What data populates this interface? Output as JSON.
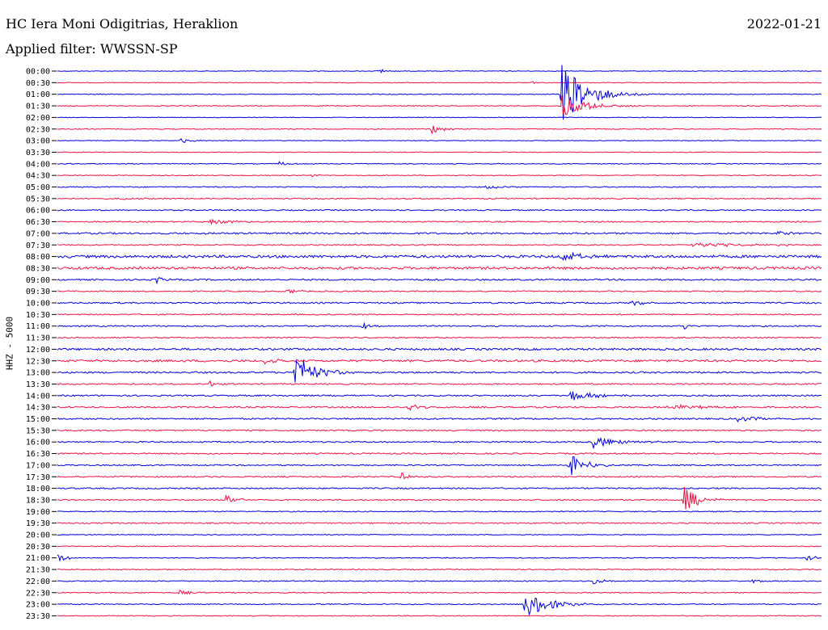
{
  "header": {
    "station": "HC Iera Moni Odigitrias, Heraklion",
    "date": "2022-01-21",
    "filter": "Applied filter: WWSSN-SP"
  },
  "chart_data": {
    "type": "line",
    "ylabel": "HHZ - 5000",
    "colors": [
      "#0000dd",
      "#ee1144"
    ],
    "rows": [
      "00:00",
      "00:30",
      "01:00",
      "01:30",
      "02:00",
      "02:30",
      "03:00",
      "03:30",
      "04:00",
      "04:30",
      "05:00",
      "05:30",
      "06:00",
      "06:30",
      "07:00",
      "07:30",
      "08:00",
      "08:30",
      "09:00",
      "09:30",
      "10:00",
      "10:30",
      "11:00",
      "11:30",
      "12:00",
      "12:30",
      "13:00",
      "13:30",
      "14:00",
      "14:30",
      "15:00",
      "15:30",
      "16:00",
      "16:30",
      "17:00",
      "17:30",
      "18:00",
      "18:30",
      "19:00",
      "19:30",
      "20:00",
      "20:30",
      "21:00",
      "21:30",
      "22:00",
      "22:30",
      "23:00",
      "23:30"
    ],
    "noise": [
      0.4,
      0.4,
      0.5,
      0.5,
      0.4,
      0.5,
      0.4,
      0.4,
      0.5,
      0.5,
      0.6,
      0.7,
      0.7,
      0.7,
      1.0,
      0.7,
      1.6,
      1.5,
      0.9,
      0.7,
      0.9,
      0.7,
      0.8,
      0.7,
      1.2,
      1.3,
      1.0,
      0.8,
      0.9,
      0.9,
      0.9,
      0.8,
      0.8,
      0.8,
      0.7,
      0.8,
      0.8,
      0.7,
      0.6,
      0.7,
      0.5,
      0.5,
      0.5,
      0.6,
      0.6,
      0.6,
      0.6,
      0.5
    ],
    "events": [
      {
        "row": 0,
        "t": 0.42,
        "amp": 3,
        "dur": 0.015
      },
      {
        "row": 1,
        "t": 0.62,
        "amp": 2,
        "dur": 0.01
      },
      {
        "row": 2,
        "t": 0.66,
        "amp": 38,
        "dur": 0.05
      },
      {
        "row": 3,
        "t": 0.66,
        "amp": 14,
        "dur": 0.05
      },
      {
        "row": 5,
        "t": 0.49,
        "amp": 7,
        "dur": 0.02
      },
      {
        "row": 6,
        "t": 0.16,
        "amp": 3,
        "dur": 0.03
      },
      {
        "row": 8,
        "t": 0.29,
        "amp": 3,
        "dur": 0.02
      },
      {
        "row": 9,
        "t": 0.33,
        "amp": 3,
        "dur": 0.01
      },
      {
        "row": 10,
        "t": 0.56,
        "amp": 3,
        "dur": 0.03
      },
      {
        "row": 11,
        "t": 0.08,
        "amp": 3,
        "dur": 0.02
      },
      {
        "row": 13,
        "t": 0.2,
        "amp": 3,
        "dur": 0.05
      },
      {
        "row": 14,
        "t": 0.94,
        "amp": 3,
        "dur": 0.04
      },
      {
        "row": 15,
        "t": 0.83,
        "amp": 3,
        "dur": 0.1
      },
      {
        "row": 16,
        "t": 0.66,
        "amp": 6,
        "dur": 0.04
      },
      {
        "row": 18,
        "t": 0.13,
        "amp": 6,
        "dur": 0.01
      },
      {
        "row": 19,
        "t": 0.3,
        "amp": 4,
        "dur": 0.02
      },
      {
        "row": 20,
        "t": 0.75,
        "amp": 6,
        "dur": 0.02
      },
      {
        "row": 22,
        "t": 0.4,
        "amp": 6,
        "dur": 0.01
      },
      {
        "row": 22,
        "t": 0.82,
        "amp": 6,
        "dur": 0.01
      },
      {
        "row": 25,
        "t": 0.27,
        "amp": 6,
        "dur": 0.02
      },
      {
        "row": 26,
        "t": 0.31,
        "amp": 24,
        "dur": 0.04
      },
      {
        "row": 27,
        "t": 0.2,
        "amp": 4,
        "dur": 0.01
      },
      {
        "row": 28,
        "t": 0.67,
        "amp": 8,
        "dur": 0.04
      },
      {
        "row": 29,
        "t": 0.46,
        "amp": 5,
        "dur": 0.03
      },
      {
        "row": 29,
        "t": 0.8,
        "amp": 3,
        "dur": 0.1
      },
      {
        "row": 30,
        "t": 0.89,
        "amp": 3,
        "dur": 0.07
      },
      {
        "row": 32,
        "t": 0.7,
        "amp": 8,
        "dur": 0.05
      },
      {
        "row": 34,
        "t": 0.67,
        "amp": 15,
        "dur": 0.03
      },
      {
        "row": 35,
        "t": 0.45,
        "amp": 6,
        "dur": 0.02
      },
      {
        "row": 37,
        "t": 0.22,
        "amp": 9,
        "dur": 0.02
      },
      {
        "row": 37,
        "t": 0.82,
        "amp": 17,
        "dur": 0.03
      },
      {
        "row": 42,
        "t": 0.0,
        "amp": 5,
        "dur": 0.02
      },
      {
        "row": 42,
        "t": 0.98,
        "amp": 4,
        "dur": 0.02
      },
      {
        "row": 44,
        "t": 0.7,
        "amp": 7,
        "dur": 0.02
      },
      {
        "row": 44,
        "t": 0.91,
        "amp": 4,
        "dur": 0.01
      },
      {
        "row": 45,
        "t": 0.16,
        "amp": 3,
        "dur": 0.02
      },
      {
        "row": 46,
        "t": 0.61,
        "amp": 18,
        "dur": 0.05
      }
    ]
  }
}
